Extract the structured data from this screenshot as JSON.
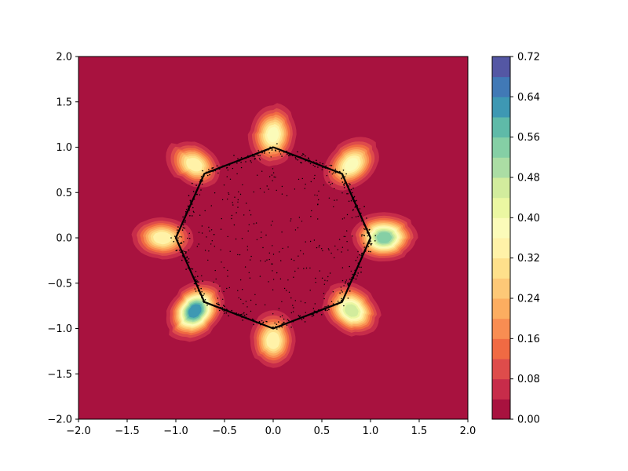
{
  "chart_data": {
    "type": "heatmap",
    "title": "",
    "xlabel": "",
    "ylabel": "",
    "xlim": [
      -2.0,
      2.0
    ],
    "ylim": [
      -2.0,
      2.0
    ],
    "x_ticks": [
      "−2.0",
      "−1.5",
      "−1.0",
      "−0.5",
      "0.0",
      "0.5",
      "1.0",
      "1.5",
      "2.0"
    ],
    "y_ticks": [
      "−2.0",
      "−1.5",
      "−1.0",
      "−0.5",
      "0.0",
      "0.5",
      "1.0",
      "1.5",
      "2.0"
    ],
    "x_tick_values": [
      -2.0,
      -1.5,
      -1.0,
      -0.5,
      0.0,
      0.5,
      1.0,
      1.5,
      2.0
    ],
    "y_tick_values": [
      -2.0,
      -1.5,
      -1.0,
      -0.5,
      0.0,
      0.5,
      1.0,
      1.5,
      2.0
    ],
    "grid": false,
    "colormap": "Spectral",
    "colorbar": {
      "range": [
        0.0,
        0.72
      ],
      "tick_values": [
        0.0,
        0.08,
        0.16,
        0.24,
        0.32,
        0.4,
        0.48,
        0.56,
        0.64,
        0.72
      ],
      "tick_labels": [
        "0.00",
        "0.08",
        "0.16",
        "0.24",
        "0.32",
        "0.40",
        "0.48",
        "0.56",
        "0.64",
        "0.72"
      ],
      "levels": [
        0.0,
        0.04,
        0.08,
        0.12,
        0.16,
        0.2,
        0.24,
        0.28,
        0.32,
        0.36,
        0.4,
        0.44,
        0.48,
        0.52,
        0.56,
        0.6,
        0.64,
        0.68,
        0.72
      ],
      "colors": [
        "#a8123f",
        "#c72c4a",
        "#de4c4b",
        "#f06a43",
        "#f88d52",
        "#fcad60",
        "#fdc877",
        "#fee08b",
        "#fff2a8",
        "#fbfbb9",
        "#ebf7a2",
        "#d2ec9d",
        "#abdda4",
        "#85cfa5",
        "#5fbaa8",
        "#3e98b3",
        "#4179b6",
        "#5457a4"
      ]
    },
    "density_peaks": [
      {
        "x": 0.0,
        "y": 1.0,
        "value": 0.36
      },
      {
        "x": 0.707,
        "y": 0.707,
        "value": 0.36
      },
      {
        "x": 1.0,
        "y": 0.0,
        "value": 0.52
      },
      {
        "x": 0.707,
        "y": -0.707,
        "value": 0.44
      },
      {
        "x": 0.0,
        "y": -1.0,
        "value": 0.34
      },
      {
        "x": -0.707,
        "y": -0.707,
        "value": 0.6
      },
      {
        "x": -1.0,
        "y": 0.0,
        "value": 0.34
      },
      {
        "x": -0.707,
        "y": 0.707,
        "value": 0.34
      }
    ],
    "octagon_vertices": [
      {
        "x": 0.0,
        "y": 1.0
      },
      {
        "x": 0.707,
        "y": 0.707
      },
      {
        "x": 1.0,
        "y": 0.0
      },
      {
        "x": 0.707,
        "y": -0.707
      },
      {
        "x": 0.0,
        "y": -1.0
      },
      {
        "x": -0.707,
        "y": -0.707
      },
      {
        "x": -1.0,
        "y": 0.0
      },
      {
        "x": -0.707,
        "y": 0.707
      }
    ],
    "scatter_color": "#000000"
  }
}
